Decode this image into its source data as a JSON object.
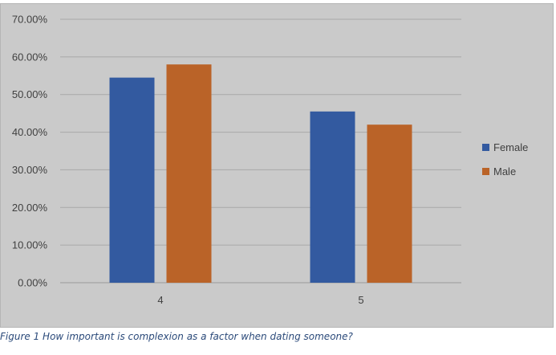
{
  "chart_data": {
    "type": "bar",
    "categories": [
      "4",
      "5"
    ],
    "series": [
      {
        "name": "Female",
        "values": [
          54.5,
          45.5
        ],
        "color": "#335aa0"
      },
      {
        "name": "Male",
        "values": [
          58.0,
          42.0
        ],
        "color": "#ba6328"
      }
    ],
    "ylim": [
      0,
      70
    ],
    "yticks": [
      "0.00%",
      "10.00%",
      "20.00%",
      "30.00%",
      "40.00%",
      "50.00%",
      "60.00%",
      "70.00%"
    ],
    "grid": true,
    "legend_position": "right"
  },
  "caption": "Figure 1 How important is complexion as a factor when dating someone?"
}
